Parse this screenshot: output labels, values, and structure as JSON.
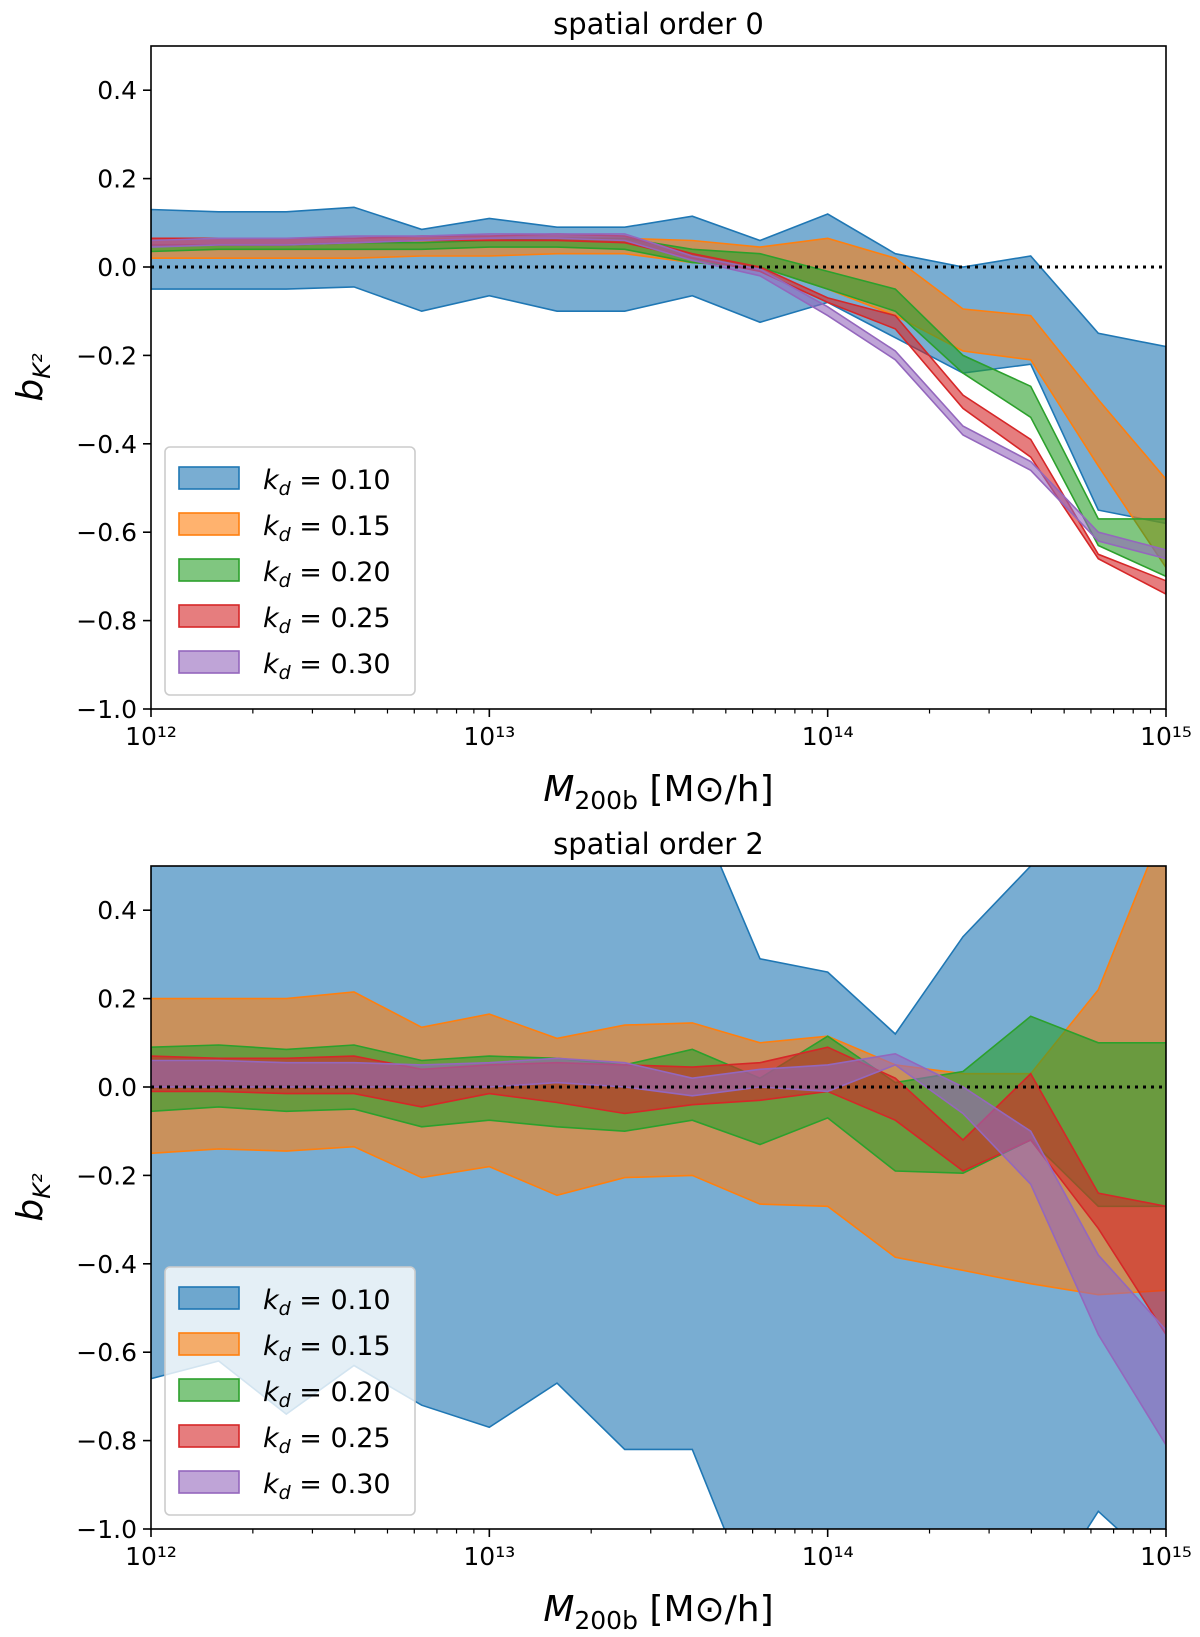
{
  "chart_data": [
    {
      "type": "band",
      "title": "spatial order 0",
      "x_label": {
        "symbol": "M",
        "subscript": "200b",
        "unit": " [M⊙/h]"
      },
      "y_label": {
        "symbol": "b",
        "subscript": "K²"
      },
      "log_x": true,
      "legend": "lower left",
      "hline": 0,
      "xlim": [
        1000000000000.0,
        1000000000000000.0
      ],
      "xticks": [
        {
          "value": 1000000000000.0,
          "label": "10¹²"
        },
        {
          "value": 10000000000000.0,
          "label": "10¹³"
        },
        {
          "value": 100000000000000.0,
          "label": "10¹⁴"
        },
        {
          "value": 1000000000000000.0,
          "label": "10¹⁵"
        }
      ],
      "xminorticks": [
        2000000000000.0,
        3000000000000.0,
        4000000000000.0,
        5000000000000.0,
        6000000000000.0,
        7000000000000.0,
        8000000000000.0,
        9000000000000.0,
        20000000000000.0,
        30000000000000.0,
        40000000000000.0,
        50000000000000.0,
        60000000000000.0,
        70000000000000.0,
        80000000000000.0,
        90000000000000.0,
        200000000000000.0,
        300000000000000.0,
        400000000000000.0,
        500000000000000.0,
        600000000000000.0,
        700000000000000.0,
        800000000000000.0,
        900000000000000.0
      ],
      "ylim": [
        -1.0,
        0.5
      ],
      "yticks": [
        {
          "value": -1.0,
          "label": "−1.0"
        },
        {
          "value": -0.8,
          "label": "−0.8"
        },
        {
          "value": -0.6,
          "label": "−0.6"
        },
        {
          "value": -0.4,
          "label": "−0.4"
        },
        {
          "value": -0.2,
          "label": "−0.2"
        },
        {
          "value": 0.0,
          "label": "0.0"
        },
        0.2,
        0.4
      ],
      "x": [
        1000000000000.0,
        1585000000000.0,
        2512000000000.0,
        3981000000000.0,
        6310000000000.0,
        10000000000000.0,
        15850000000000.0,
        25120000000000.0,
        39810000000000.0,
        63100000000000.0,
        100000000000000.0,
        158500000000000.0,
        251200000000000.0,
        398100000000000.0,
        631000000000000.0,
        1000000000000000.0
      ],
      "series": [
        {
          "name": "kd = 0.10",
          "color": "#1f77b4",
          "upper": [
            0.13,
            0.125,
            0.125,
            0.135,
            0.085,
            0.11,
            0.09,
            0.09,
            0.115,
            0.06,
            0.12,
            0.03,
            0.0,
            0.025,
            -0.15,
            -0.18
          ],
          "lower": [
            -0.05,
            -0.05,
            -0.05,
            -0.045,
            -0.1,
            -0.065,
            -0.1,
            -0.1,
            -0.065,
            -0.125,
            -0.08,
            -0.16,
            -0.24,
            -0.22,
            -0.55,
            -0.58
          ]
        },
        {
          "name": "kd = 0.15",
          "color": "#ff7f0e",
          "upper": [
            0.06,
            0.065,
            0.065,
            0.065,
            0.065,
            0.065,
            0.065,
            0.065,
            0.06,
            0.045,
            0.065,
            0.02,
            -0.095,
            -0.11,
            -0.3,
            -0.48
          ],
          "lower": [
            0.02,
            0.02,
            0.02,
            0.02,
            0.025,
            0.025,
            0.03,
            0.03,
            0.01,
            0.0,
            -0.05,
            -0.11,
            -0.19,
            -0.21,
            -0.45,
            -0.68
          ]
        },
        {
          "name": "kd = 0.20",
          "color": "#2ca02c",
          "upper": [
            0.05,
            0.05,
            0.05,
            0.055,
            0.055,
            0.06,
            0.065,
            0.065,
            0.04,
            0.03,
            -0.01,
            -0.05,
            -0.2,
            -0.27,
            -0.57,
            -0.57
          ],
          "lower": [
            0.035,
            0.04,
            0.04,
            0.04,
            0.04,
            0.045,
            0.045,
            0.04,
            0.01,
            0.0,
            -0.05,
            -0.1,
            -0.24,
            -0.34,
            -0.63,
            -0.7
          ]
        },
        {
          "name": "kd = 0.25",
          "color": "#d62728",
          "upper": [
            0.065,
            0.065,
            0.065,
            0.065,
            0.07,
            0.07,
            0.075,
            0.07,
            0.03,
            0.0,
            -0.07,
            -0.11,
            -0.29,
            -0.39,
            -0.65,
            -0.71
          ],
          "lower": [
            0.05,
            0.05,
            0.05,
            0.055,
            0.06,
            0.06,
            0.06,
            0.055,
            0.02,
            -0.01,
            -0.08,
            -0.14,
            -0.32,
            -0.43,
            -0.66,
            -0.74
          ]
        },
        {
          "name": "kd = 0.30",
          "color": "#9467bd",
          "upper": [
            0.06,
            0.065,
            0.065,
            0.07,
            0.07,
            0.075,
            0.075,
            0.075,
            0.025,
            -0.005,
            -0.09,
            -0.19,
            -0.36,
            -0.44,
            -0.6,
            -0.64
          ],
          "lower": [
            0.045,
            0.05,
            0.05,
            0.055,
            0.06,
            0.065,
            0.065,
            0.06,
            0.015,
            -0.02,
            -0.11,
            -0.21,
            -0.38,
            -0.46,
            -0.62,
            -0.66
          ]
        }
      ]
    },
    {
      "type": "band",
      "title": "spatial order 2",
      "x_label": {
        "symbol": "M",
        "subscript": "200b",
        "unit": " [M⊙/h]"
      },
      "y_label": {
        "symbol": "b",
        "subscript": "K²"
      },
      "log_x": true,
      "legend": "lower left",
      "hline": 0,
      "xlim": [
        1000000000000.0,
        1000000000000000.0
      ],
      "xticks": [
        {
          "value": 1000000000000.0,
          "label": "10¹²"
        },
        {
          "value": 10000000000000.0,
          "label": "10¹³"
        },
        {
          "value": 100000000000000.0,
          "label": "10¹⁴"
        },
        {
          "value": 1000000000000000.0,
          "label": "10¹⁵"
        }
      ],
      "xminorticks": [
        2000000000000.0,
        3000000000000.0,
        4000000000000.0,
        5000000000000.0,
        6000000000000.0,
        7000000000000.0,
        8000000000000.0,
        9000000000000.0,
        20000000000000.0,
        30000000000000.0,
        40000000000000.0,
        50000000000000.0,
        60000000000000.0,
        70000000000000.0,
        80000000000000.0,
        90000000000000.0,
        200000000000000.0,
        300000000000000.0,
        400000000000000.0,
        500000000000000.0,
        600000000000000.0,
        700000000000000.0,
        800000000000000.0,
        900000000000000.0
      ],
      "ylim": [
        -1.0,
        0.5
      ],
      "yticks": [
        {
          "value": -1.0,
          "label": "−1.0"
        },
        {
          "value": -0.8,
          "label": "−0.8"
        },
        {
          "value": -0.6,
          "label": "−0.6"
        },
        {
          "value": -0.4,
          "label": "−0.4"
        },
        {
          "value": -0.2,
          "label": "−0.2"
        },
        {
          "value": 0.0,
          "label": "0.0"
        },
        0.2,
        0.4
      ],
      "x": [
        1000000000000.0,
        1585000000000.0,
        2512000000000.0,
        3981000000000.0,
        6310000000000.0,
        10000000000000.0,
        15850000000000.0,
        25120000000000.0,
        39810000000000.0,
        63100000000000.0,
        100000000000000.0,
        158500000000000.0,
        251200000000000.0,
        398100000000000.0,
        631000000000000.0,
        1000000000000000.0
      ],
      "series": [
        {
          "name": "kd = 0.10",
          "color": "#1f77b4",
          "upper": [
            0.7,
            0.7,
            0.7,
            0.7,
            0.7,
            0.7,
            0.7,
            0.7,
            0.65,
            0.29,
            0.26,
            0.12,
            0.34,
            0.5,
            0.6,
            0.7
          ],
          "lower": [
            -0.66,
            -0.62,
            -0.74,
            -0.63,
            -0.72,
            -0.77,
            -0.67,
            -0.82,
            -0.82,
            -1.2,
            -1.2,
            -1.2,
            -1.2,
            -1.2,
            -0.96,
            -1.1
          ]
        },
        {
          "name": "kd = 0.15",
          "color": "#ff7f0e",
          "upper": [
            0.2,
            0.2,
            0.2,
            0.215,
            0.135,
            0.165,
            0.11,
            0.14,
            0.145,
            0.1,
            0.115,
            0.05,
            0.03,
            0.03,
            0.22,
            0.6
          ],
          "lower": [
            -0.15,
            -0.14,
            -0.145,
            -0.135,
            -0.205,
            -0.18,
            -0.245,
            -0.205,
            -0.2,
            -0.265,
            -0.27,
            -0.385,
            -0.415,
            -0.445,
            -0.47,
            -0.46
          ]
        },
        {
          "name": "kd = 0.20",
          "color": "#2ca02c",
          "upper": [
            0.09,
            0.095,
            0.085,
            0.095,
            0.06,
            0.07,
            0.065,
            0.05,
            0.085,
            0.02,
            0.115,
            0.01,
            0.035,
            0.16,
            0.1,
            0.1
          ],
          "lower": [
            -0.055,
            -0.045,
            -0.055,
            -0.05,
            -0.09,
            -0.075,
            -0.09,
            -0.1,
            -0.075,
            -0.13,
            -0.07,
            -0.19,
            -0.195,
            -0.12,
            -0.27,
            -0.27
          ]
        },
        {
          "name": "kd = 0.25",
          "color": "#d62728",
          "upper": [
            0.07,
            0.065,
            0.065,
            0.07,
            0.04,
            0.05,
            0.055,
            0.05,
            0.045,
            0.055,
            0.09,
            0.02,
            -0.12,
            0.03,
            -0.24,
            -0.27
          ],
          "lower": [
            -0.01,
            -0.01,
            -0.015,
            -0.015,
            -0.045,
            -0.015,
            -0.035,
            -0.06,
            -0.04,
            -0.03,
            -0.01,
            -0.075,
            -0.19,
            -0.12,
            -0.32,
            -0.56
          ]
        },
        {
          "name": "kd = 0.30",
          "color": "#9467bd",
          "upper": [
            0.06,
            0.06,
            0.055,
            0.055,
            0.05,
            0.055,
            0.065,
            0.055,
            0.02,
            0.04,
            0.05,
            0.075,
            0.0,
            -0.1,
            -0.38,
            -0.55
          ],
          "lower": [
            0.0,
            0.0,
            0.0,
            0.0,
            0.0,
            0.0,
            0.01,
            0.0,
            -0.02,
            0.0,
            -0.01,
            0.05,
            -0.06,
            -0.22,
            -0.56,
            -0.81
          ]
        }
      ]
    }
  ]
}
